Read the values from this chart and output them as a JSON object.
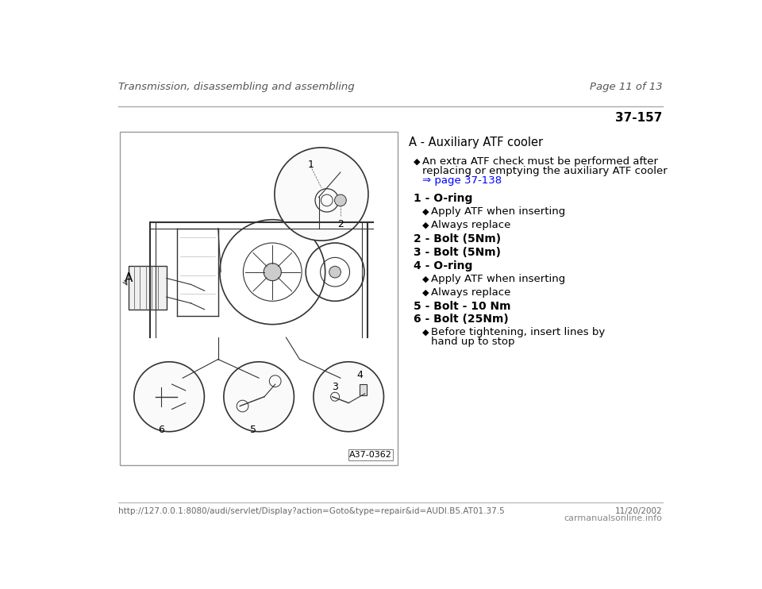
{
  "bg_color": "#ffffff",
  "header_left": "Transmission, disassembling and assembling",
  "header_right": "Page 11 of 13",
  "section_number": "37-157",
  "header_line_color": "#aaaaaa",
  "title_a": "A - Auxiliary ATF cooler",
  "link_text": "⇒ page 37-138",
  "link_color": "#0000ff",
  "items": [
    {
      "label": "1 - O-ring",
      "bold": true,
      "sub": [
        "Apply ATF when inserting",
        "Always replace"
      ]
    },
    {
      "label": "2 - Bolt (5Nm)",
      "bold": true,
      "sub": []
    },
    {
      "label": "3 - Bolt (5Nm)",
      "bold": true,
      "sub": []
    },
    {
      "label": "4 - O-ring",
      "bold": true,
      "sub": [
        "Apply ATF when inserting",
        "Always replace"
      ]
    },
    {
      "label": "5 - Bolt - 10 Nm",
      "bold": true,
      "sub": []
    },
    {
      "label": "6 - Bolt (25Nm)",
      "bold": true,
      "sub": [
        "Before tightening, insert lines by hand up to stop"
      ]
    }
  ],
  "footer_url": "http://127.0.0.1:8080/audi/servlet/Display?action=Goto&type=repair&id=AUDI.B5.AT01.37.5",
  "footer_date": "11/20/2002",
  "footer_right": "carmanualsonline.info",
  "image_label": "A37-0362",
  "text_color": "#000000",
  "footer_text_color": "#666666",
  "line_color": "#333333"
}
